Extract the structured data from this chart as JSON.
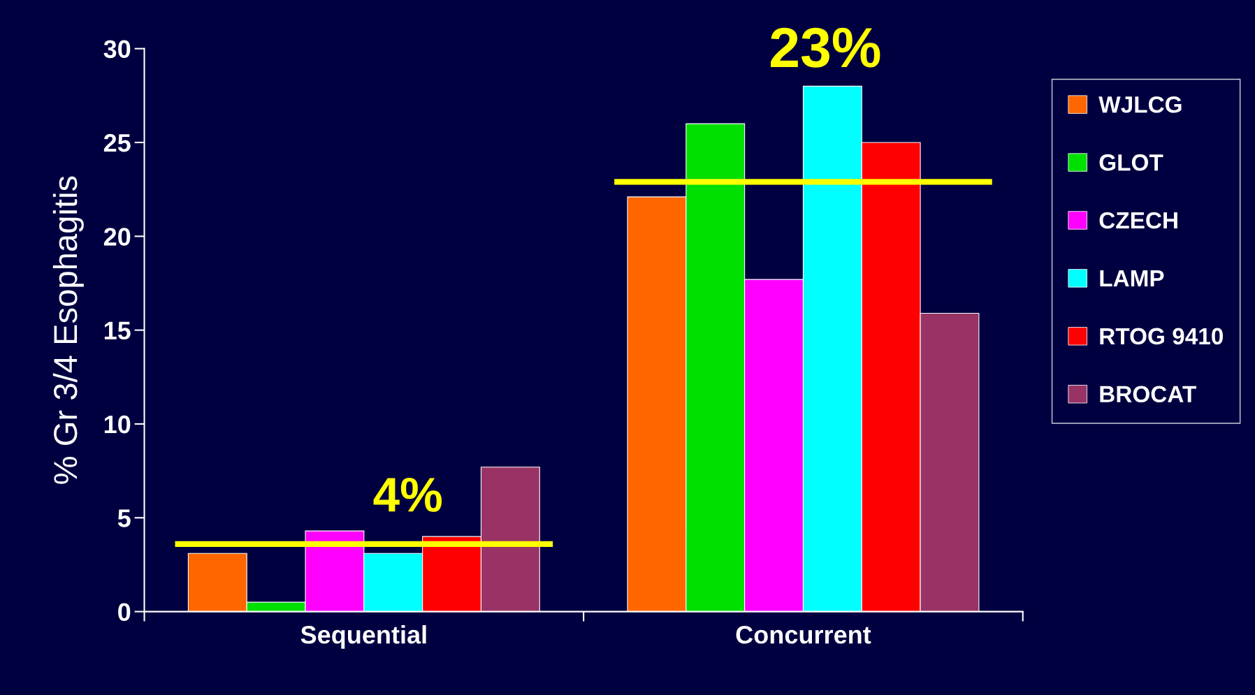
{
  "chart_data": {
    "type": "bar",
    "ylabel": "% Gr 3/4 Esophagitis",
    "categories": [
      "Sequential",
      "Concurrent"
    ],
    "series": [
      {
        "name": "WJLCG",
        "color": "#ff6600",
        "values": [
          3.1,
          22.1
        ]
      },
      {
        "name": "GLOT",
        "color": "#00e000",
        "values": [
          0.5,
          26
        ]
      },
      {
        "name": "CZECH",
        "color": "#ff00ff",
        "values": [
          4.3,
          17.7
        ]
      },
      {
        "name": "LAMP",
        "color": "#00ffff",
        "values": [
          3.1,
          28
        ]
      },
      {
        "name": "RTOG 9410",
        "color": "#ff0000",
        "values": [
          4,
          25
        ]
      },
      {
        "name": "BROCAT",
        "color": "#993366",
        "values": [
          7.7,
          15.9
        ]
      }
    ],
    "ylim": [
      0,
      30
    ],
    "yticks": [
      0,
      5,
      10,
      15,
      20,
      25,
      30
    ],
    "ref_lines": [
      {
        "axis": "y",
        "value": 3.6,
        "label": "4%",
        "color": "#ffff00"
      },
      {
        "axis": "y",
        "value": 22.9,
        "label": "23%",
        "color": "#ffff00"
      }
    ],
    "legend": "right",
    "grid": false
  }
}
